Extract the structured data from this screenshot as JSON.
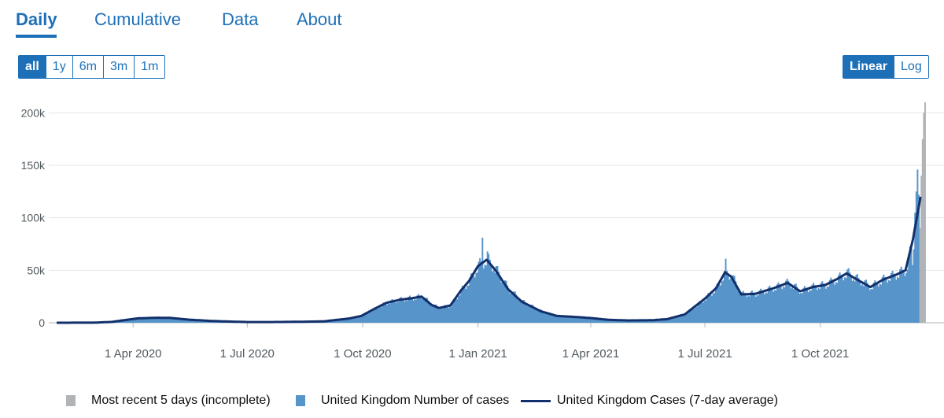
{
  "tabs": [
    {
      "label": "Daily",
      "active": true
    },
    {
      "label": "Cumulative",
      "active": false
    },
    {
      "label": "Data",
      "active": false
    },
    {
      "label": "About",
      "active": false
    }
  ],
  "range_buttons": [
    {
      "label": "all",
      "active": true
    },
    {
      "label": "1y",
      "active": false
    },
    {
      "label": "6m",
      "active": false
    },
    {
      "label": "3m",
      "active": false
    },
    {
      "label": "1m",
      "active": false
    }
  ],
  "scale_buttons": [
    {
      "label": "Linear",
      "active": true
    },
    {
      "label": "Log",
      "active": false
    }
  ],
  "colors": {
    "accent": "#1d70b8",
    "bars": "#5694ca",
    "incomplete": "#b1b4b6",
    "average": "#12306b",
    "grid": "#e6e6e6",
    "axis_text": "#505a5f"
  },
  "chart_data": {
    "type": "bar",
    "title": "",
    "xlabel": "",
    "ylabel": "",
    "x_range": [
      "2020-01-31",
      "2021-12-20"
    ],
    "ylim": [
      0,
      210000
    ],
    "grid": true,
    "y_ticks": [
      {
        "value": 0,
        "label": "0"
      },
      {
        "value": 50000,
        "label": "50k"
      },
      {
        "value": 100000,
        "label": "100k"
      },
      {
        "value": 150000,
        "label": "150k"
      },
      {
        "value": 200000,
        "label": "200k"
      }
    ],
    "x_ticks": [
      {
        "date": "2020-04-01",
        "label": "1 Apr 2020"
      },
      {
        "date": "2020-07-01",
        "label": "1 Jul 2020"
      },
      {
        "date": "2020-10-01",
        "label": "1 Oct 2020"
      },
      {
        "date": "2021-01-01",
        "label": "1 Jan 2021"
      },
      {
        "date": "2021-04-01",
        "label": "1 Apr 2021"
      },
      {
        "date": "2021-07-01",
        "label": "1 Jul 2021"
      },
      {
        "date": "2021-10-01",
        "label": "1 Oct 2021"
      }
    ],
    "seven_day_average": [
      [
        "2020-01-31",
        0
      ],
      [
        "2020-03-01",
        100
      ],
      [
        "2020-03-15",
        800
      ],
      [
        "2020-03-25",
        2500
      ],
      [
        "2020-04-05",
        4200
      ],
      [
        "2020-04-20",
        4800
      ],
      [
        "2020-05-01",
        4600
      ],
      [
        "2020-05-15",
        3000
      ],
      [
        "2020-06-01",
        1800
      ],
      [
        "2020-06-15",
        1200
      ],
      [
        "2020-07-01",
        700
      ],
      [
        "2020-07-15",
        650
      ],
      [
        "2020-08-01",
        800
      ],
      [
        "2020-08-15",
        1000
      ],
      [
        "2020-08-31",
        1300
      ],
      [
        "2020-09-10",
        2700
      ],
      [
        "2020-09-20",
        4000
      ],
      [
        "2020-09-30",
        6500
      ],
      [
        "2020-10-10",
        13000
      ],
      [
        "2020-10-20",
        19000
      ],
      [
        "2020-10-31",
        22000
      ],
      [
        "2020-11-10",
        23500
      ],
      [
        "2020-11-17",
        25000
      ],
      [
        "2020-11-25",
        17000
      ],
      [
        "2020-12-01",
        14000
      ],
      [
        "2020-12-10",
        16500
      ],
      [
        "2020-12-18",
        30000
      ],
      [
        "2020-12-25",
        40000
      ],
      [
        "2021-01-01",
        54000
      ],
      [
        "2021-01-08",
        60000
      ],
      [
        "2021-01-15",
        50000
      ],
      [
        "2021-01-25",
        32000
      ],
      [
        "2021-02-05",
        20000
      ],
      [
        "2021-02-20",
        11000
      ],
      [
        "2021-03-05",
        6500
      ],
      [
        "2021-03-20",
        5500
      ],
      [
        "2021-04-01",
        4500
      ],
      [
        "2021-04-15",
        2800
      ],
      [
        "2021-05-01",
        2200
      ],
      [
        "2021-05-20",
        2400
      ],
      [
        "2021-06-01",
        3500
      ],
      [
        "2021-06-15",
        8000
      ],
      [
        "2021-07-01",
        23000
      ],
      [
        "2021-07-10",
        33000
      ],
      [
        "2021-07-17",
        48000
      ],
      [
        "2021-07-22",
        44000
      ],
      [
        "2021-07-30",
        27000
      ],
      [
        "2021-08-10",
        27500
      ],
      [
        "2021-08-25",
        33000
      ],
      [
        "2021-09-05",
        38000
      ],
      [
        "2021-09-15",
        30000
      ],
      [
        "2021-09-25",
        34000
      ],
      [
        "2021-10-05",
        36000
      ],
      [
        "2021-10-15",
        42000
      ],
      [
        "2021-10-22",
        47000
      ],
      [
        "2021-11-01",
        40000
      ],
      [
        "2021-11-10",
        34000
      ],
      [
        "2021-11-20",
        41000
      ],
      [
        "2021-12-01",
        46000
      ],
      [
        "2021-12-08",
        50000
      ],
      [
        "2021-12-14",
        80000
      ],
      [
        "2021-12-20",
        120000
      ]
    ],
    "series": [
      {
        "name": "Most recent 5 days (incomplete)",
        "values": [
          [
            "2021-12-19",
            90000
          ],
          [
            "2021-12-20",
            140000
          ],
          [
            "2021-12-21",
            175000
          ],
          [
            "2021-12-22",
            200000
          ],
          [
            "2021-12-23",
            210000
          ]
        ]
      },
      {
        "name": "United Kingdom Number of cases",
        "values": [
          [
            "2021-12-13",
            55000
          ],
          [
            "2021-12-14",
            70000
          ],
          [
            "2021-12-15",
            105000
          ],
          [
            "2021-12-16",
            125000
          ],
          [
            "2021-12-17",
            146000
          ],
          [
            "2021-12-18",
            122000
          ],
          [
            "2021-01-04",
            81000
          ],
          [
            "2021-01-08",
            68000
          ],
          [
            "2021-07-17",
            61000
          ]
        ]
      },
      {
        "name": "United Kingdom Cases (7-day average)",
        "values": "seven_day_average"
      }
    ]
  }
}
